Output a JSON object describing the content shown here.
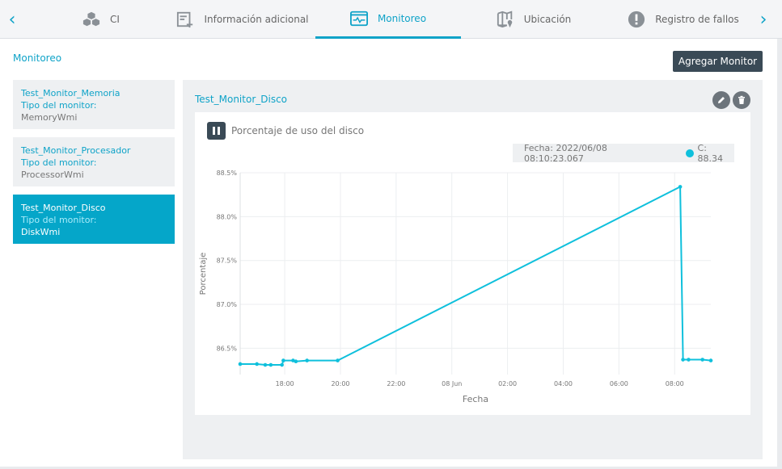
{
  "tabs": [
    {
      "label": "CI",
      "icon": "cubes-icon",
      "active": false
    },
    {
      "label": "Información adicional",
      "icon": "add-info-icon",
      "active": false
    },
    {
      "label": "Monitoreo",
      "icon": "monitor-window-icon",
      "active": true
    },
    {
      "label": "Ubicación",
      "icon": "map-pin-icon",
      "active": false
    },
    {
      "label": "Registro de fallos",
      "icon": "alert-circle-icon",
      "active": false
    }
  ],
  "page": {
    "title": "Monitoreo",
    "add_button": "Agregar Monitor"
  },
  "monitors": [
    {
      "name": "Test_Monitor_Memoria",
      "type_label": "Tipo del monitor:",
      "type_value": "MemoryWmi",
      "active": false
    },
    {
      "name": "Test_Monitor_Procesador",
      "type_label": "Tipo del monitor:",
      "type_value": "ProcessorWmi",
      "active": false
    },
    {
      "name": "Test_Monitor_Disco",
      "type_label": "Tipo del monitor:",
      "type_value": "DiskWmi",
      "active": true
    }
  ],
  "detail": {
    "title": "Test_Monitor_Disco",
    "chart_title": "Porcentaje de uso del disco",
    "tooltip_date": "Fecha: 2022/06/08 08:10:23.067",
    "tooltip_value": "C: 88.34"
  },
  "colors": {
    "accent": "#0fa3c8",
    "series": "#0fc0dc",
    "button_dark": "#3a4a56",
    "selected_item": "#05a6c9"
  },
  "chart_data": {
    "type": "line",
    "title": "",
    "xlabel": "Fecha",
    "ylabel": "Porcentaje",
    "x_ticks": [
      "18:00",
      "20:00",
      "22:00",
      "08 Jun",
      "02:00",
      "04:00",
      "06:00",
      "08:00"
    ],
    "x_tick_hours": [
      18,
      20,
      22,
      24,
      26,
      28,
      30,
      32
    ],
    "xlim_hours": [
      16.4,
      33.3
    ],
    "y_ticks": [
      "86.5%",
      "87.0%",
      "87.5%",
      "88.0%",
      "88.5%"
    ],
    "y_tick_values": [
      86.5,
      87.0,
      87.5,
      88.0,
      88.5
    ],
    "ylim": [
      86.2,
      88.5
    ],
    "grid": true,
    "series": [
      {
        "name": "C",
        "x_hours": [
          16.4,
          17.0,
          17.3,
          17.5,
          17.9,
          17.95,
          18.3,
          18.4,
          18.8,
          19.9,
          32.2,
          32.3,
          32.5,
          33.0,
          33.3
        ],
        "values": [
          86.32,
          86.32,
          86.31,
          86.31,
          86.31,
          86.36,
          86.36,
          86.35,
          86.36,
          86.36,
          88.34,
          86.37,
          86.37,
          86.37,
          86.36
        ]
      }
    ]
  }
}
